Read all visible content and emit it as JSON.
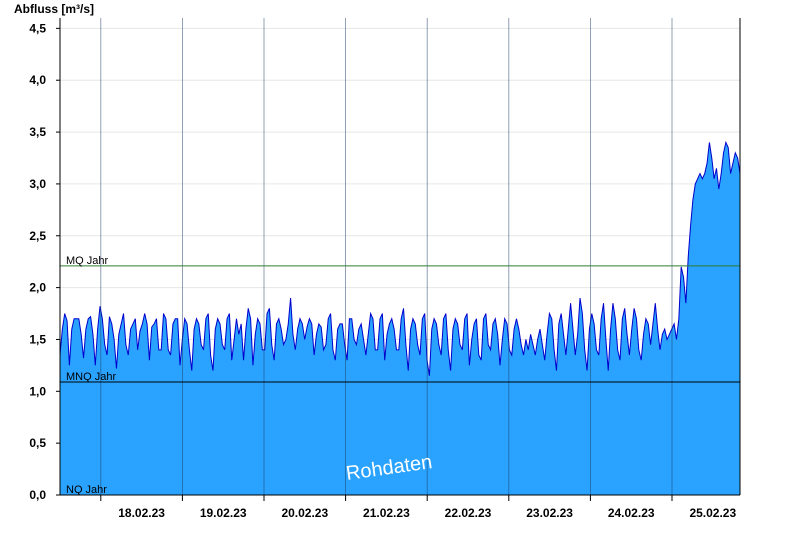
{
  "chart_data": {
    "type": "area",
    "ylabel": "Abfluss [m³/s]",
    "ylim": [
      0,
      4.6
    ],
    "yticks": [
      0,
      0.5,
      1.0,
      1.5,
      2.0,
      2.5,
      3.0,
      3.5,
      4.0,
      4.5
    ],
    "ytick_labels": [
      "0,0",
      "0,5",
      "1,0",
      "1,5",
      "2,0",
      "2,5",
      "3,0",
      "3,5",
      "4,0",
      "4,5"
    ],
    "xlim": [
      "17.02.23 12:00",
      "25.02.23 20:00"
    ],
    "day_labels": [
      "18.02.23",
      "19.02.23",
      "20.02.23",
      "21.02.23",
      "22.02.23",
      "23.02.23",
      "24.02.23",
      "25.02.23"
    ],
    "grid": true,
    "fill_color": "#29a3ff",
    "line_color": "#0000cc",
    "reference_lines": [
      {
        "label": "MQ Jahr",
        "value": 2.21,
        "color": "#2e7d32"
      },
      {
        "label": "MNQ Jahr",
        "value": 1.09,
        "color": "#000000"
      },
      {
        "label": "NQ Jahr",
        "value": 0.0,
        "color": "#000000"
      }
    ],
    "watermark": "Rohdaten",
    "series": [
      {
        "values": [
          1.35,
          1.6,
          1.75,
          1.68,
          1.25,
          1.6,
          1.7,
          1.7,
          1.7,
          1.55,
          1.32,
          1.6,
          1.7,
          1.72,
          1.55,
          1.25,
          1.6,
          1.82,
          1.7,
          1.45,
          1.35,
          1.72,
          1.65,
          1.5,
          1.22,
          1.55,
          1.65,
          1.75,
          1.45,
          1.35,
          1.6,
          1.65,
          1.7,
          1.4,
          1.58,
          1.65,
          1.75,
          1.65,
          1.3,
          1.62,
          1.65,
          1.7,
          1.4,
          1.4,
          1.75,
          1.7,
          1.4,
          1.35,
          1.65,
          1.7,
          1.7,
          1.25,
          1.5,
          1.7,
          1.65,
          1.4,
          1.2,
          1.6,
          1.7,
          1.65,
          1.45,
          1.4,
          1.7,
          1.75,
          1.35,
          1.2,
          1.6,
          1.7,
          1.65,
          1.45,
          1.4,
          1.7,
          1.75,
          1.3,
          1.5,
          1.7,
          1.55,
          1.65,
          1.3,
          1.6,
          1.8,
          1.7,
          1.25,
          1.55,
          1.7,
          1.65,
          1.4,
          1.4,
          1.75,
          1.8,
          1.45,
          1.3,
          1.65,
          1.7,
          1.6,
          1.45,
          1.5,
          1.65,
          1.9,
          1.55,
          1.4,
          1.6,
          1.7,
          1.65,
          1.5,
          1.62,
          1.7,
          1.65,
          1.35,
          1.55,
          1.65,
          1.62,
          1.4,
          1.45,
          1.7,
          1.75,
          1.4,
          1.3,
          1.6,
          1.65,
          1.65,
          1.45,
          1.3,
          1.7,
          1.7,
          1.5,
          1.45,
          1.6,
          1.65,
          1.5,
          1.35,
          1.55,
          1.75,
          1.7,
          1.4,
          1.4,
          1.7,
          1.75,
          1.3,
          1.55,
          1.65,
          1.7,
          1.6,
          1.4,
          1.4,
          1.7,
          1.8,
          1.45,
          1.2,
          1.6,
          1.7,
          1.65,
          1.45,
          1.35,
          1.7,
          1.75,
          1.3,
          1.15,
          1.6,
          1.7,
          1.65,
          1.45,
          1.35,
          1.7,
          1.75,
          1.4,
          1.2,
          1.6,
          1.7,
          1.65,
          1.45,
          1.4,
          1.7,
          1.75,
          1.25,
          1.5,
          1.65,
          1.7,
          1.35,
          1.3,
          1.7,
          1.75,
          1.45,
          1.4,
          1.65,
          1.7,
          1.55,
          1.25,
          1.5,
          1.7,
          1.65,
          1.4,
          1.35,
          1.6,
          1.7,
          1.6,
          1.45,
          1.35,
          1.5,
          1.4,
          1.55,
          1.45,
          1.35,
          1.5,
          1.6,
          1.45,
          1.3,
          1.55,
          1.75,
          1.7,
          1.4,
          1.2,
          1.65,
          1.75,
          1.55,
          1.35,
          1.6,
          1.85,
          1.6,
          1.35,
          1.55,
          1.9,
          1.75,
          1.4,
          1.2,
          1.6,
          1.75,
          1.65,
          1.4,
          1.35,
          1.7,
          1.85,
          1.5,
          1.2,
          1.6,
          1.85,
          1.7,
          1.4,
          1.3,
          1.7,
          1.8,
          1.55,
          1.35,
          1.6,
          1.8,
          1.7,
          1.4,
          1.3,
          1.55,
          1.7,
          1.65,
          1.45,
          1.65,
          1.85,
          1.6,
          1.4,
          1.55,
          1.6,
          1.5,
          1.55,
          1.6,
          1.65,
          1.5,
          1.7,
          2.2,
          2.1,
          1.85,
          2.3,
          2.6,
          2.85,
          3.0,
          3.05,
          3.1,
          3.05,
          3.1,
          3.2,
          3.4,
          3.25,
          3.05,
          3.15,
          2.95,
          3.1,
          3.3,
          3.4,
          3.35,
          3.1,
          3.2,
          3.3,
          3.25,
          3.1
        ]
      }
    ]
  }
}
